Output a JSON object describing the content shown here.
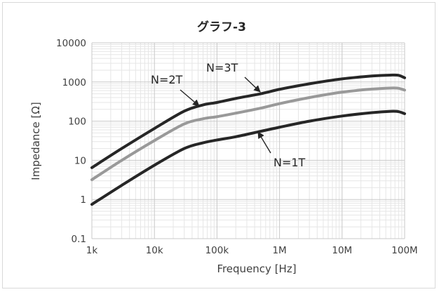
{
  "chart_data": {
    "type": "line",
    "title": "グラフ-3",
    "xlabel": "Frequency [Hz]",
    "ylabel": "Impedance [Ω]",
    "x_scale": "log",
    "y_scale": "log",
    "xlim": [
      1000,
      100000000
    ],
    "ylim": [
      0.1,
      10000
    ],
    "x_tick_values": [
      1000,
      10000,
      100000,
      1000000,
      10000000,
      100000000
    ],
    "x_tick_labels": [
      "1k",
      "10k",
      "100k",
      "1M",
      "10M",
      "100M"
    ],
    "y_tick_values": [
      0.1,
      1,
      10,
      100,
      1000,
      10000
    ],
    "y_tick_labels": [
      "0.1",
      "1",
      "10",
      "100",
      "1000",
      "10000"
    ],
    "grid": true,
    "legend": "none",
    "series": [
      {
        "name": "N=3T",
        "color": "#262626",
        "x": [
          1000,
          3000,
          10000,
          30000,
          60000,
          100000,
          200000,
          500000,
          1000000,
          3000000,
          10000000,
          30000000,
          60000000,
          80000000,
          100000000
        ],
        "y": [
          6.5,
          20,
          65,
          180,
          260,
          300,
          380,
          500,
          650,
          900,
          1200,
          1420,
          1500,
          1480,
          1280
        ]
      },
      {
        "name": "N=2T",
        "color": "#999999",
        "x": [
          1000,
          3000,
          10000,
          30000,
          60000,
          100000,
          200000,
          500000,
          1000000,
          3000000,
          10000000,
          30000000,
          60000000,
          80000000,
          100000000
        ],
        "y": [
          3.2,
          10,
          32,
          85,
          115,
          130,
          160,
          215,
          280,
          400,
          550,
          660,
          700,
          690,
          620
        ]
      },
      {
        "name": "N=1T",
        "color": "#262626",
        "x": [
          1000,
          3000,
          10000,
          30000,
          60000,
          100000,
          200000,
          500000,
          1000000,
          3000000,
          10000000,
          30000000,
          60000000,
          80000000,
          100000000
        ],
        "y": [
          0.75,
          2.3,
          7.5,
          20,
          28,
          33,
          40,
          55,
          70,
          100,
          135,
          165,
          178,
          175,
          155
        ]
      }
    ],
    "annotations": [
      {
        "text": "N=3T",
        "series": "N=3T"
      },
      {
        "text": "N=2T",
        "series": "N=2T"
      },
      {
        "text": "N=1T",
        "series": "N=1T"
      }
    ]
  }
}
